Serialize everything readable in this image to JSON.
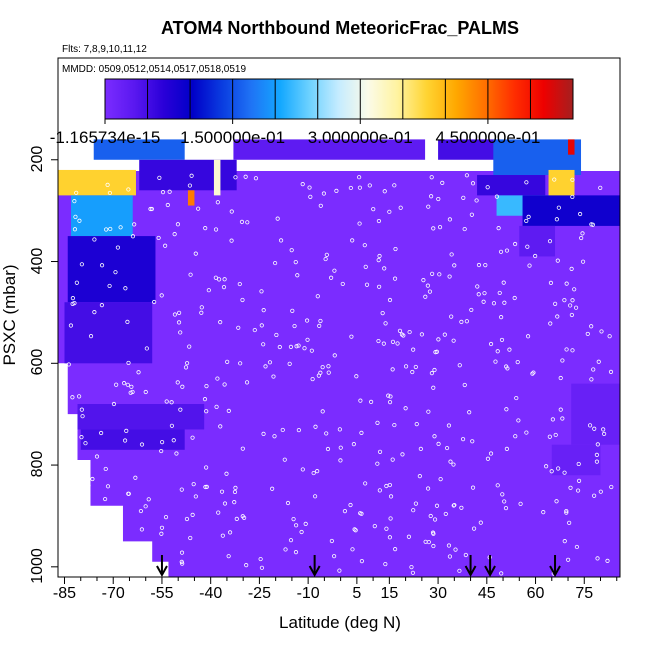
{
  "chart_data": {
    "type": "heatmap",
    "title": "ATOM4 Northbound MeteoricFrac_PALMS",
    "flights_label": "Flts: 7,8,9,10,11,12",
    "mmdd_label": "MMDD: 0509,0512,0514,0517,0518,0519",
    "xlabel": "Latitude (deg N)",
    "ylabel": "PSXC (mbar)",
    "xlim": [
      -87,
      86
    ],
    "ylim": [
      1020,
      0
    ],
    "x_ticks": [
      -85,
      -70,
      -55,
      -40,
      -25,
      -10,
      5,
      15,
      30,
      45,
      60,
      75
    ],
    "x_tick_labels": [
      "-85",
      "-70",
      "-55",
      "-40",
      "-25",
      "-10",
      "5",
      "15",
      "30",
      "45",
      "60",
      "75"
    ],
    "y_ticks": [
      200,
      400,
      600,
      800,
      1000
    ],
    "y_tick_labels": [
      "200",
      "400",
      "600",
      "800",
      "1000"
    ],
    "colorbar": {
      "min": 0,
      "max": 0.55,
      "tick_values": [
        0,
        0.15,
        0.3,
        0.45
      ],
      "tick_labels": [
        "-1.165734e-15",
        "1.500000e-01",
        "3.000000e-01",
        "4.500000e-01"
      ],
      "colors": [
        "#7b2cff",
        "#5a18f0",
        "#2a00d8",
        "#0000c8",
        "#0a3ce0",
        "#1f73f5",
        "#14a8ff",
        "#6ed2ff",
        "#c6ecff",
        "#fbfbe8",
        "#fff3a0",
        "#ffd432",
        "#ffa800",
        "#ff7000",
        "#ff2d00",
        "#ee0000",
        "#a51f1f"
      ]
    },
    "cross_sections": [
      {
        "lat_min": -87,
        "lat_max": -63,
        "p_top": 220,
        "p_bot": 270,
        "value": 0.38
      },
      {
        "lat_min": -83,
        "lat_max": -64,
        "p_top": 270,
        "p_bot": 350,
        "value": 0.2
      },
      {
        "lat_min": -84,
        "lat_max": -57,
        "p_top": 350,
        "p_bot": 480,
        "value": 0.08
      },
      {
        "lat_min": -85,
        "lat_max": -58,
        "p_top": 480,
        "p_bot": 600,
        "value": 0.05
      },
      {
        "lat_min": -81,
        "lat_max": -42,
        "p_top": 680,
        "p_bot": 730,
        "value": 0.04
      },
      {
        "lat_min": -80,
        "lat_max": -48,
        "p_top": 730,
        "p_bot": 770,
        "value": 0.05
      },
      {
        "lat_min": -76,
        "lat_max": -48,
        "p_top": 160,
        "p_bot": 200,
        "value": 0.16
      },
      {
        "lat_min": -62,
        "lat_max": -32,
        "p_top": 200,
        "p_bot": 260,
        "value": 0.06
      },
      {
        "lat_min": -39,
        "lat_max": -37,
        "p_top": 200,
        "p_bot": 270,
        "value": 0.32
      },
      {
        "lat_min": -47,
        "lat_max": -45,
        "p_top": 260,
        "p_bot": 290,
        "value": 0.44
      },
      {
        "lat_min": -33,
        "lat_max": 26,
        "p_top": 160,
        "p_bot": 200,
        "value": 0.03
      },
      {
        "lat_min": 30,
        "lat_max": 48,
        "p_top": 160,
        "p_bot": 200,
        "value": 0.05
      },
      {
        "lat_min": 47,
        "lat_max": 74,
        "p_top": 160,
        "p_bot": 230,
        "value": 0.16
      },
      {
        "lat_min": 42,
        "lat_max": 63,
        "p_top": 230,
        "p_bot": 270,
        "value": 0.06
      },
      {
        "lat_min": 48,
        "lat_max": 66,
        "p_top": 270,
        "p_bot": 310,
        "value": 0.22
      },
      {
        "lat_min": 64,
        "lat_max": 72,
        "p_top": 220,
        "p_bot": 280,
        "value": 0.38
      },
      {
        "lat_min": 70,
        "lat_max": 72,
        "p_top": 160,
        "p_bot": 190,
        "value": 0.52
      },
      {
        "lat_min": 56,
        "lat_max": 86,
        "p_top": 270,
        "p_bot": 330,
        "value": 0.09
      },
      {
        "lat_min": 55,
        "lat_max": 66,
        "p_top": 330,
        "p_bot": 390,
        "value": 0.03
      },
      {
        "lat_min": 71,
        "lat_max": 86,
        "p_top": 640,
        "p_bot": 760,
        "value": 0.02
      },
      {
        "lat_min": 65,
        "lat_max": 80,
        "p_top": 760,
        "p_bot": 820,
        "value": 0.02
      }
    ],
    "markers": [
      {
        "type": "arrow",
        "lat": -55
      },
      {
        "type": "arrow",
        "lat": -8
      },
      {
        "type": "arrow",
        "lat": 40
      },
      {
        "type": "arrow",
        "lat": 46
      },
      {
        "type": "arrow",
        "lat": 66
      }
    ]
  }
}
